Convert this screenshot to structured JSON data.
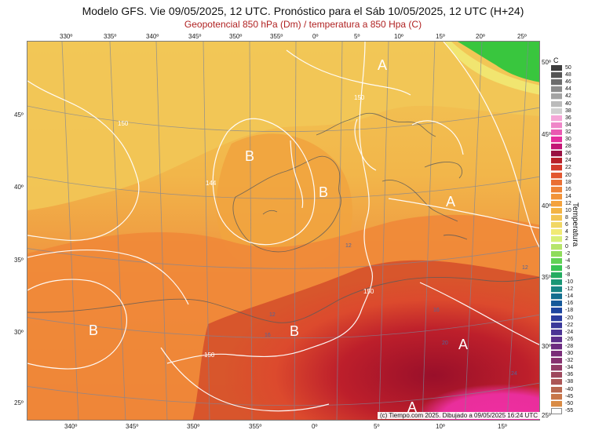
{
  "header": {
    "title": "Modelo GFS. Vie 09/05/2025, 12 UTC. Pronóstico para el Sáb 10/05/2025, 12 UTC (H+24)",
    "subtitle": "Geopotencial 850 hPa (Dm) / temperatura a 850 Hpa (C)"
  },
  "axes": {
    "top_ticks": [
      "330º",
      "335º",
      "340º",
      "345º",
      "350º",
      "355º",
      "0º",
      "5º",
      "10º",
      "15º",
      "20º",
      "25º"
    ],
    "bottom_ticks": [
      "340º",
      "345º",
      "350º",
      "355º",
      "0º",
      "5º",
      "10º",
      "15º"
    ],
    "left_ticks": [
      "45º",
      "40º",
      "35º",
      "30º",
      "25º"
    ],
    "right_ticks": [
      "50º",
      "45º",
      "40º",
      "35º",
      "30º",
      "25º"
    ]
  },
  "map": {
    "pressure_labels": [
      {
        "text": "A",
        "kind": "high"
      },
      {
        "text": "B",
        "kind": "low"
      },
      {
        "text": "B",
        "kind": "low"
      },
      {
        "text": "A",
        "kind": "high"
      },
      {
        "text": "B",
        "kind": "low"
      },
      {
        "text": "B",
        "kind": "low"
      },
      {
        "text": "A",
        "kind": "high"
      },
      {
        "text": "A",
        "kind": "high"
      }
    ],
    "contour_labels": [
      "150",
      "150",
      "144",
      "150",
      "150"
    ],
    "temperature_labels": [
      "12",
      "12",
      "12",
      "16",
      "16",
      "20",
      "24"
    ],
    "colors": {
      "ocean_base": "#f1a83e",
      "north_yellow": "#f2c657",
      "hot_orange": "#ef7a2d",
      "hot_red": "#d6512b",
      "deep_red": "#a51027",
      "magenta": "#ea2f9a",
      "green": "#39c63e",
      "contour_white": "#ffffff",
      "coastline": "#5a5a5a",
      "graticule": "#7f8597"
    }
  },
  "legend": {
    "unit": "C",
    "caption": "Temperatura",
    "values": [
      "50",
      "48",
      "46",
      "44",
      "42",
      "40",
      "38",
      "36",
      "34",
      "32",
      "30",
      "28",
      "26",
      "24",
      "22",
      "20",
      "18",
      "16",
      "14",
      "12",
      "10",
      "8",
      "6",
      "4",
      "2",
      "0",
      "-2",
      "-4",
      "-6",
      "-8",
      "-10",
      "-12",
      "-14",
      "-16",
      "-18",
      "-20",
      "-22",
      "-24",
      "-26",
      "-28",
      "-30",
      "-32",
      "-34",
      "-36",
      "-38",
      "-40",
      "-45",
      "-50",
      "-55"
    ],
    "colors": [
      "#3d3d3d",
      "#545454",
      "#6d6d6d",
      "#8c8c8c",
      "#a3a3a3",
      "#bbbbbb",
      "#d0d0d0",
      "#f5a6d7",
      "#ef86c8",
      "#ea58b1",
      "#e52e9c",
      "#c31575",
      "#991041",
      "#b81f29",
      "#d33b2c",
      "#e35730",
      "#ea6f33",
      "#ef8337",
      "#f2943a",
      "#f4a23d",
      "#f3b344",
      "#f2c454",
      "#f1d764",
      "#f1ea74",
      "#d8ef77",
      "#b6e56b",
      "#8fdc5b",
      "#61d254",
      "#38c453",
      "#23ac61",
      "#1a9775",
      "#188584",
      "#156f8f",
      "#155899",
      "#1d459f",
      "#2b3d9f",
      "#3a389a",
      "#4b3394",
      "#5d2e8b",
      "#6d2c81",
      "#7a2b78",
      "#86306f",
      "#923b66",
      "#9e485d",
      "#ab5656",
      "#b8674f",
      "#c8774a",
      "#d98b45",
      "#ffffff"
    ]
  },
  "footer": {
    "credit": "(c) Tiempo.com 2025. Dibujado a 09/05/2025 16:24 UTC"
  }
}
